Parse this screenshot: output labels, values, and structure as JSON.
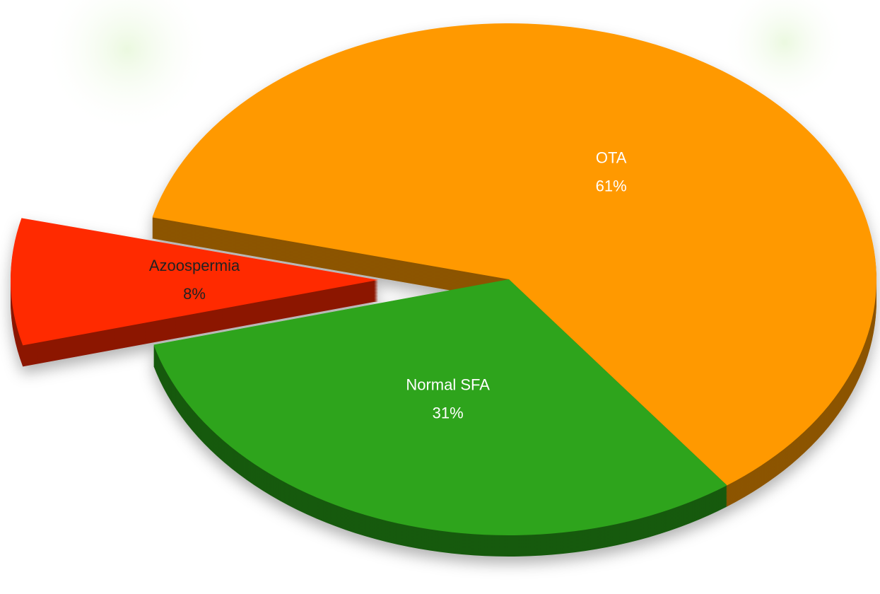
{
  "chart_data": {
    "type": "pie",
    "categories": [
      "OTA",
      "Normal SFA",
      "Azoospermia"
    ],
    "values": [
      61,
      31,
      8
    ],
    "value_labels": [
      "61%",
      "31%",
      "8%"
    ],
    "colors": [
      "#ff9900",
      "#2ea41c",
      "#ff2a00"
    ]
  }
}
